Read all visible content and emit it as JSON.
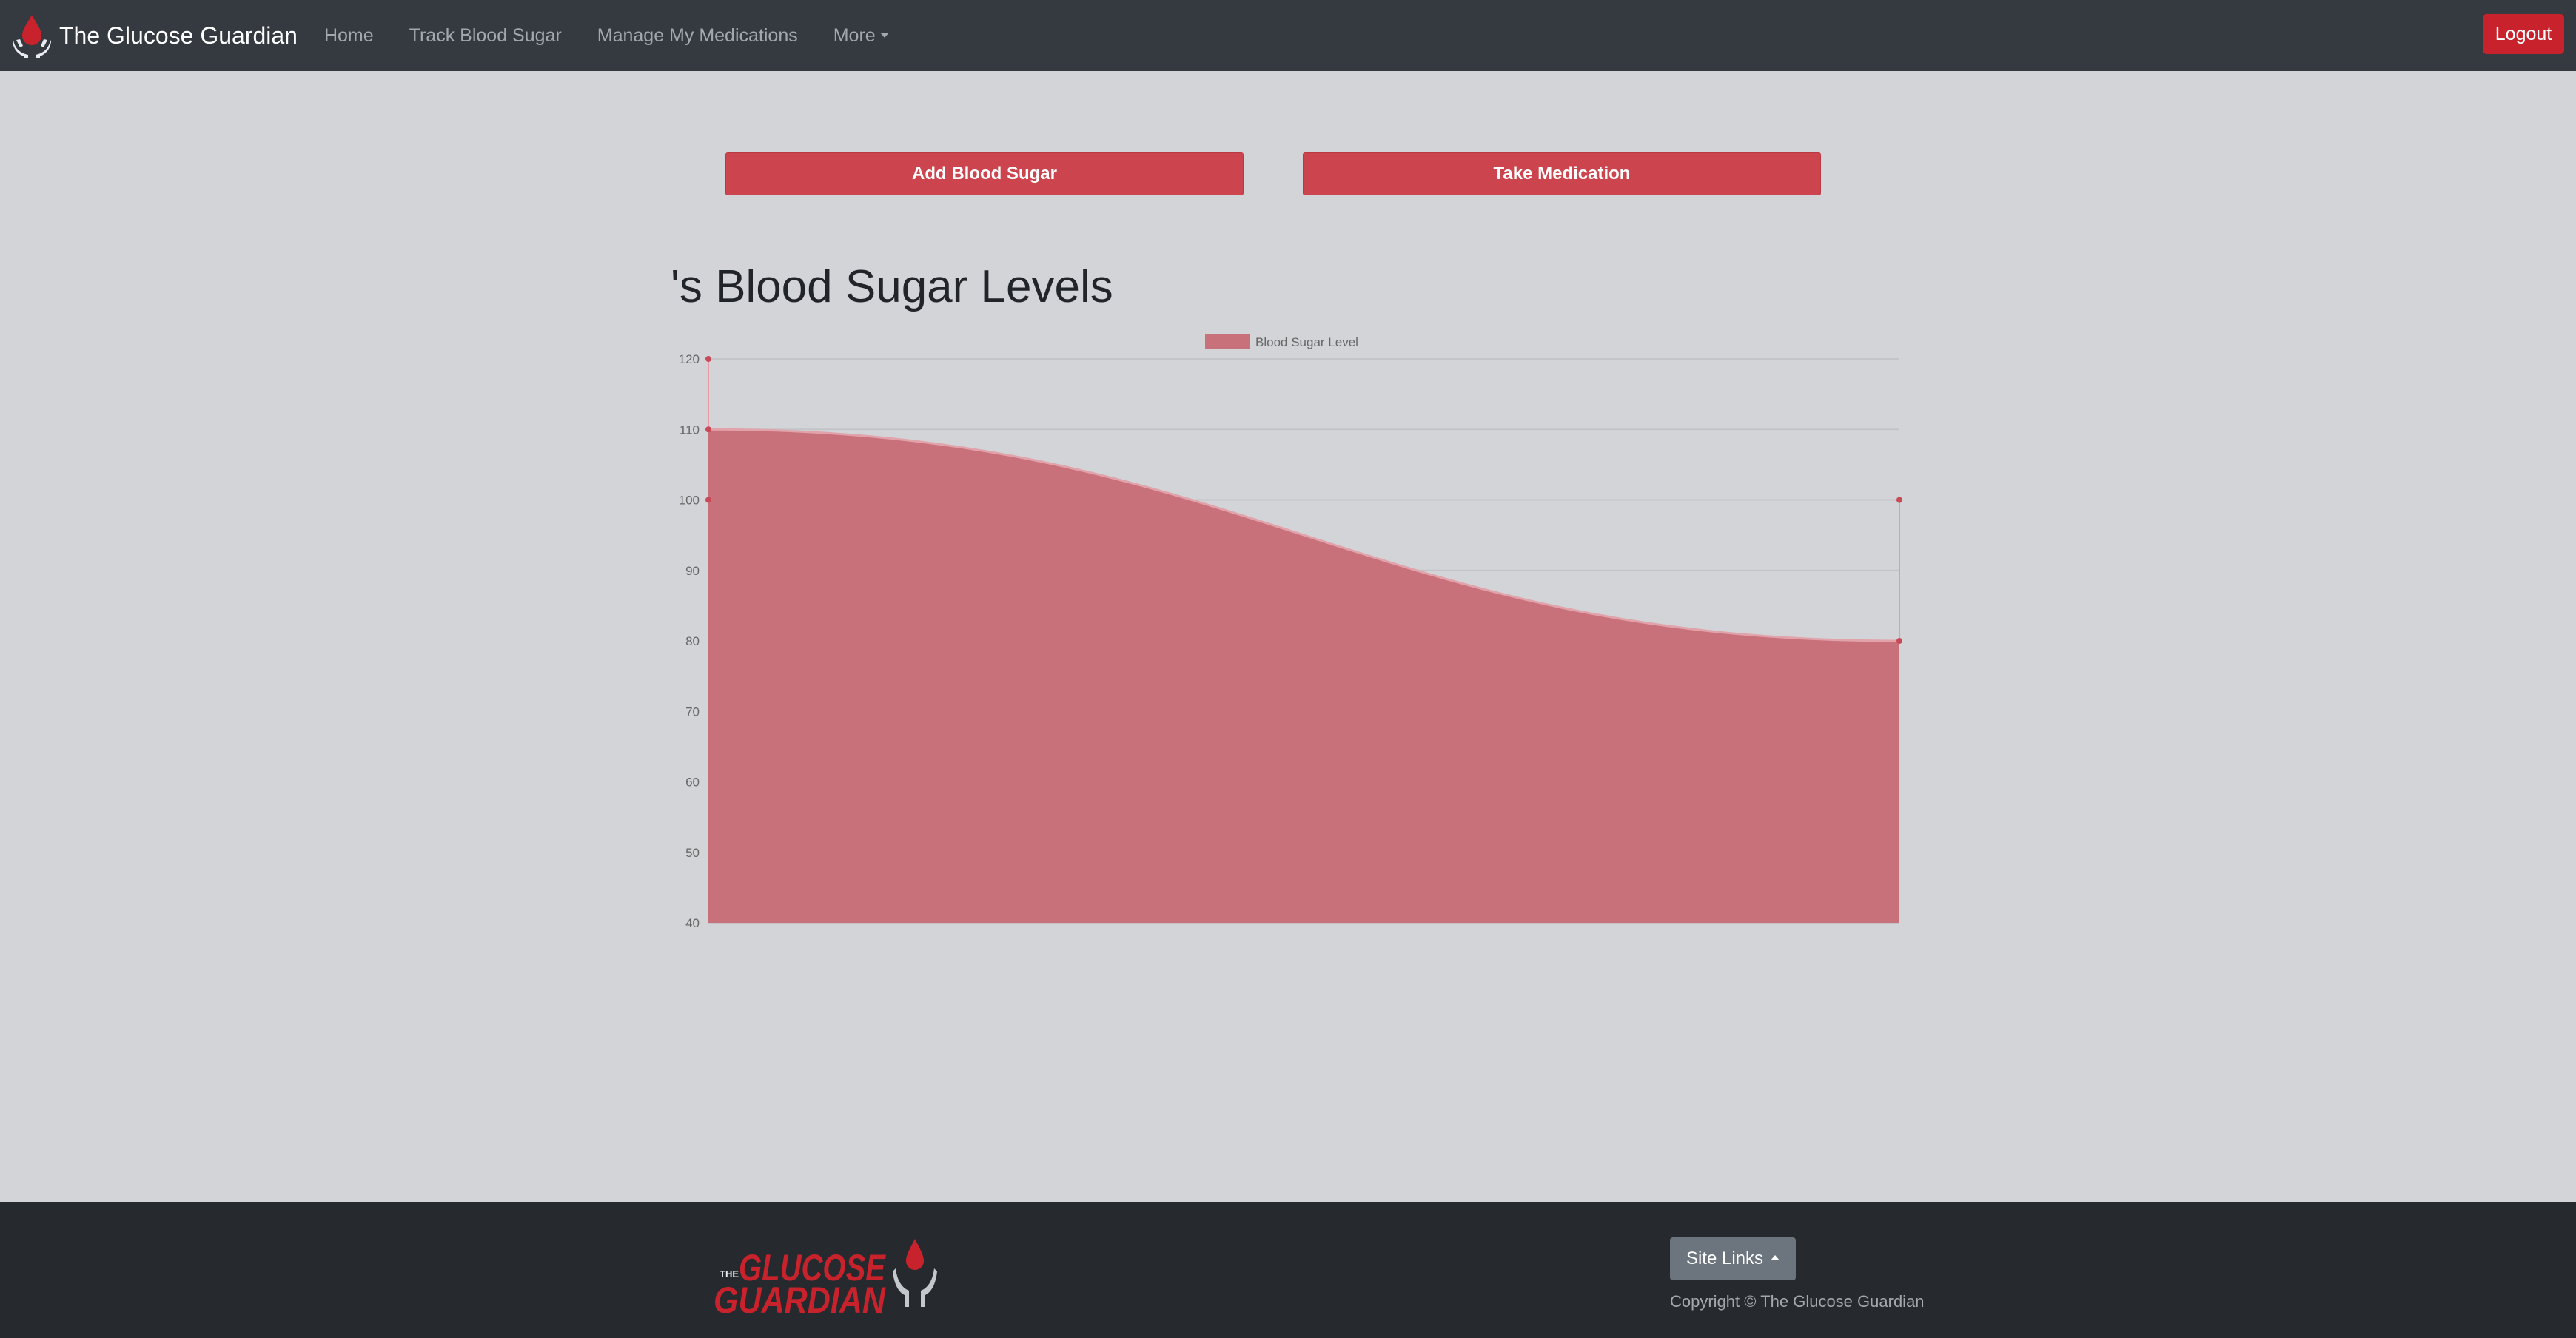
{
  "navbar": {
    "brand": "The Glucose Guardian",
    "links": [
      "Home",
      "Track Blood Sugar",
      "Manage My Medications",
      "More"
    ],
    "logout": "Logout"
  },
  "actions": {
    "add_blood_sugar": "Add Blood Sugar",
    "take_medication": "Take Medication"
  },
  "page": {
    "heading": "'s Blood Sugar Levels"
  },
  "chart_data": {
    "type": "area",
    "series": [
      {
        "name": "Blood Sugar Level",
        "values": [
          110,
          80
        ]
      }
    ],
    "x": [
      "",
      ""
    ],
    "ylim": [
      40,
      120
    ],
    "y_ticks": [
      40,
      50,
      60,
      70,
      80,
      90,
      100,
      110,
      120
    ],
    "grid": true,
    "legend_position": "top",
    "colors": {
      "fill": "#c8717b",
      "line": "#e1a2aa",
      "point": "#c94a57"
    }
  },
  "footer": {
    "logo_small": "THE",
    "logo_line1": "GLUCOSE",
    "logo_line2": "GUARDIAN",
    "site_links": "Site Links",
    "copyright": "Copyright © The Glucose Guardian"
  },
  "colors": {
    "navbar": "#343a40",
    "footer": "#26292d",
    "accent_red": "#cc444d",
    "background": "#d2d4d8"
  }
}
